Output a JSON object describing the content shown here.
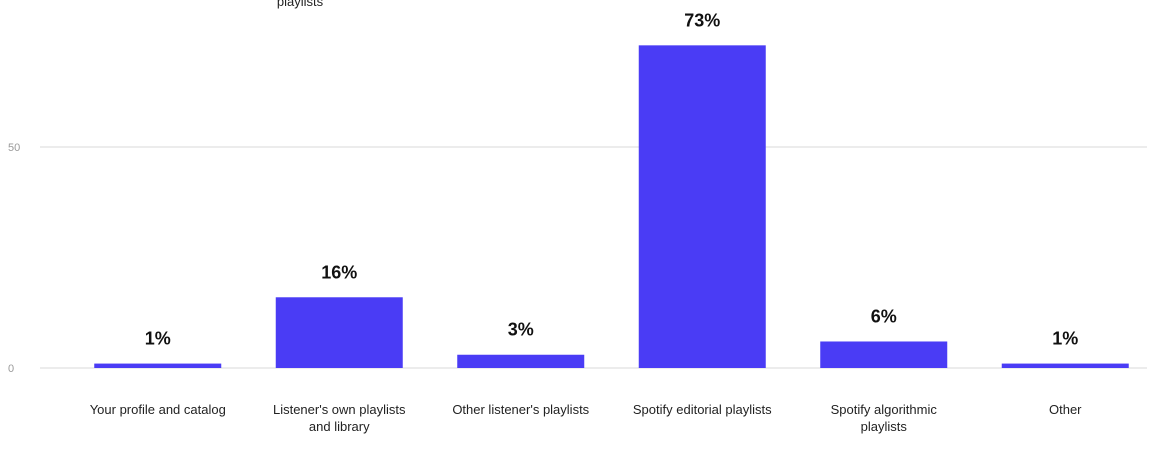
{
  "chart_data": {
    "type": "bar",
    "categories": [
      "Your profile and catalog",
      "Listener's own playlists and library",
      "Other listener's playlists",
      "Spotify editorial playlists",
      "Spotify algorithmic playlists",
      "Other"
    ],
    "values": [
      1,
      16,
      3,
      73,
      6,
      1
    ],
    "data_labels": [
      "1%",
      "16%",
      "3%",
      "73%",
      "6%",
      "1%"
    ],
    "yticks": [
      0,
      50
    ],
    "ytick_labels": [
      "0",
      "50"
    ],
    "ylim": [
      0,
      79
    ],
    "grid": true,
    "bar_color": "#4a3cf5",
    "gridline_color": "#d9d9d9",
    "partial_top_label": "playlists"
  }
}
